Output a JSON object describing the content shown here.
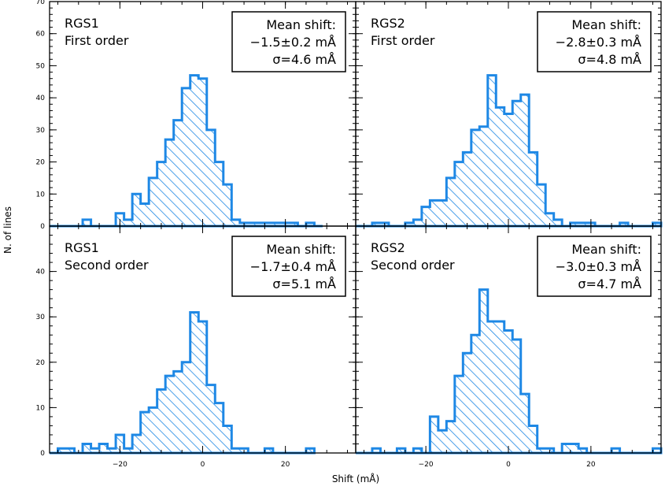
{
  "figure": {
    "xlabel": "Shift (mÅ)",
    "ylabel": "N. of lines"
  },
  "chart_data": [
    {
      "type": "bar",
      "panel": "top-left",
      "title_lines": [
        "RGS1",
        "First order"
      ],
      "box_lines": [
        "Mean shift:",
        "−1.5±0.2 mÅ",
        "σ=4.6 mÅ"
      ],
      "bin_edges": [
        -37,
        -33,
        -29,
        -27,
        -25,
        -21,
        -19,
        -17,
        -15,
        -13,
        -11,
        -9,
        -7,
        -5,
        -3,
        -1,
        1,
        3,
        5,
        7,
        9,
        11,
        13,
        15,
        17,
        19,
        21,
        23,
        25,
        27,
        29
      ],
      "counts": [
        0,
        0,
        2,
        0,
        0,
        4,
        2,
        10,
        7,
        15,
        20,
        27,
        33,
        43,
        47,
        46,
        30,
        20,
        13,
        2,
        1,
        1,
        1,
        1,
        1,
        1,
        1,
        0,
        1,
        0
      ],
      "xlim": [
        -37,
        37
      ],
      "ylim": [
        0,
        70
      ],
      "yticks": [
        0,
        10,
        20,
        30,
        40,
        50,
        60,
        70
      ],
      "xticks": [
        -20,
        0,
        20
      ]
    },
    {
      "type": "bar",
      "panel": "top-right",
      "title_lines": [
        "RGS2",
        "First order"
      ],
      "box_lines": [
        "Mean shift:",
        "−2.8±0.3 mÅ",
        "σ=4.8 mÅ"
      ],
      "bin_edges": [
        -37,
        -33,
        -31,
        -29,
        -27,
        -25,
        -23,
        -21,
        -19,
        -17,
        -15,
        -13,
        -11,
        -9,
        -7,
        -5,
        -3,
        -1,
        1,
        3,
        5,
        7,
        9,
        11,
        13,
        15,
        17,
        19,
        21,
        23,
        25,
        27,
        29,
        31,
        33,
        35,
        37
      ],
      "counts": [
        0,
        1,
        1,
        0,
        0,
        1,
        2,
        6,
        8,
        8,
        15,
        20,
        23,
        30,
        31,
        47,
        37,
        35,
        39,
        41,
        23,
        13,
        4,
        2,
        0,
        1,
        1,
        1,
        0,
        0,
        0,
        1,
        0,
        0,
        0,
        1
      ],
      "xlim": [
        -37,
        37
      ],
      "ylim": [
        0,
        70
      ],
      "yticks": [
        0,
        10,
        20,
        30,
        40,
        50,
        60,
        70
      ],
      "xticks": [
        -20,
        0,
        20
      ]
    },
    {
      "type": "bar",
      "panel": "bottom-left",
      "title_lines": [
        "RGS1",
        "Second order"
      ],
      "box_lines": [
        "Mean shift:",
        "−1.7±0.4 mÅ",
        "σ=5.1 mÅ"
      ],
      "bin_edges": [
        -37,
        -35,
        -31,
        -29,
        -27,
        -25,
        -23,
        -21,
        -19,
        -17,
        -15,
        -13,
        -11,
        -9,
        -7,
        -5,
        -3,
        -1,
        1,
        3,
        5,
        7,
        9,
        11,
        13,
        15,
        17,
        19,
        21,
        23,
        25,
        27
      ],
      "counts": [
        0,
        1,
        0,
        2,
        1,
        2,
        1,
        4,
        1,
        4,
        9,
        10,
        14,
        17,
        18,
        20,
        31,
        29,
        15,
        11,
        6,
        1,
        1,
        0,
        0,
        1,
        0,
        0,
        0,
        0,
        1
      ],
      "xlim": [
        -37,
        37
      ],
      "ylim": [
        0,
        50
      ],
      "yticks": [
        0,
        10,
        20,
        30,
        40
      ],
      "xticks": [
        -20,
        0,
        20
      ]
    },
    {
      "type": "bar",
      "panel": "bottom-right",
      "title_lines": [
        "RGS2",
        "Second order"
      ],
      "box_lines": [
        "Mean shift:",
        "−3.0±0.3 mÅ",
        "σ=4.7 mÅ"
      ],
      "bin_edges": [
        -37,
        -33,
        -31,
        -29,
        -27,
        -25,
        -23,
        -21,
        -19,
        -17,
        -15,
        -13,
        -11,
        -9,
        -7,
        -5,
        -3,
        -1,
        1,
        3,
        5,
        7,
        9,
        11,
        13,
        15,
        17,
        19,
        21,
        23,
        25,
        27,
        29,
        31,
        33,
        35,
        37
      ],
      "counts": [
        0,
        1,
        0,
        0,
        1,
        0,
        1,
        0,
        8,
        5,
        7,
        17,
        22,
        26,
        36,
        29,
        29,
        27,
        25,
        13,
        6,
        1,
        1,
        0,
        2,
        2,
        1,
        0,
        0,
        0,
        1,
        0,
        0,
        0,
        0,
        1
      ],
      "xlim": [
        -37,
        37
      ],
      "ylim": [
        0,
        50
      ],
      "yticks": [
        0,
        10,
        20,
        30,
        40
      ],
      "xticks": [
        -20,
        0,
        20
      ]
    }
  ]
}
